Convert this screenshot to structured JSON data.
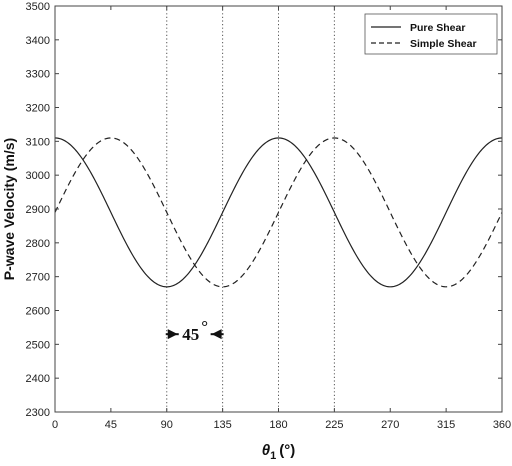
{
  "chart_data": {
    "type": "line",
    "title": "",
    "ylabel": "P-wave Velocity (m/s)",
    "xlabel_symbol": "θ",
    "xlabel_subscript": "1",
    "xlabel_unit": "(°)",
    "xlim": [
      0,
      360
    ],
    "ylim": [
      2300,
      3500
    ],
    "xticks": [
      0,
      45,
      90,
      135,
      180,
      225,
      270,
      315,
      360
    ],
    "yticks": [
      2300,
      2400,
      2500,
      2600,
      2700,
      2800,
      2900,
      3000,
      3100,
      3200,
      3300,
      3400,
      3500
    ],
    "grid_x": [
      90,
      135,
      180,
      225
    ],
    "grid": "vertical dotted at 90, 135, 180, 225",
    "legend": {
      "position": "top-right"
    },
    "series": [
      {
        "name": "Pure Shear",
        "style": "solid",
        "mean": 2890,
        "amplitude": 220,
        "phase_deg": 0,
        "x": [
          0,
          45,
          90,
          135,
          180,
          225,
          270,
          315,
          360
        ],
        "y": [
          3110,
          2890,
          2670,
          2890,
          3110,
          2890,
          2670,
          2890,
          3110
        ]
      },
      {
        "name": "Simple Shear",
        "style": "dashed",
        "mean": 2890,
        "amplitude": 220,
        "phase_deg": 45,
        "x": [
          0,
          45,
          90,
          135,
          180,
          225,
          270,
          315,
          360
        ],
        "y": [
          2890,
          3110,
          2890,
          2670,
          2890,
          3110,
          2890,
          2670,
          2890
        ]
      }
    ],
    "annotations": [
      {
        "text": "45",
        "degree_mark": "°",
        "x_from": 90,
        "x_to": 135,
        "y": 2530
      }
    ],
    "colors": {
      "line": "#222222",
      "grid": "#555555",
      "axis": "#444444"
    }
  }
}
